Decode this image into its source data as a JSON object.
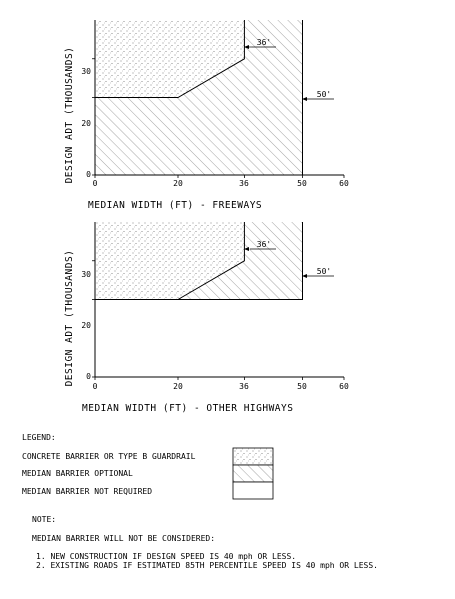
{
  "chart_data": [
    {
      "type": "area",
      "xlabel": "MEDIAN WIDTH (FT) - FREEWAYS",
      "ylabel": "DESIGN ADT (THOUSANDS)",
      "x_ticks": [
        "0",
        "20",
        "36",
        "50",
        "60"
      ],
      "y_ticks": [
        "0",
        "20",
        "30"
      ],
      "xlim": [
        0,
        60
      ],
      "ylim": [
        0,
        40
      ],
      "barrier_boundary": [
        [
          0,
          20
        ],
        [
          20,
          20
        ],
        [
          36,
          30
        ],
        [
          36,
          40
        ]
      ],
      "optional_boundary_x": 50,
      "annotations": [
        "36'",
        "50'"
      ]
    },
    {
      "type": "area",
      "xlabel": "MEDIAN WIDTH (FT) - OTHER HIGHWAYS",
      "ylabel": "DESIGN ADT (THOUSANDS)",
      "x_ticks": [
        "0",
        "20",
        "36",
        "50",
        "60"
      ],
      "y_ticks": [
        "0",
        "20",
        "30"
      ],
      "xlim": [
        0,
        60
      ],
      "ylim": [
        0,
        40
      ],
      "barrier_boundary": [
        [
          20,
          20
        ],
        [
          36,
          30
        ],
        [
          36,
          40
        ]
      ],
      "optional_region": [
        [
          0,
          20
        ],
        [
          50,
          20
        ],
        [
          50,
          40
        ],
        [
          0,
          40
        ]
      ],
      "annotations": [
        "36'",
        "50'"
      ]
    }
  ],
  "legend": {
    "title": "LEGEND:",
    "items": [
      {
        "label": "CONCRETE BARRIER OR TYPE B GUARDRAIL",
        "pattern": "dots"
      },
      {
        "label": "MEDIAN BARRIER OPTIONAL",
        "pattern": "hatch"
      },
      {
        "label": "MEDIAN BARRIER NOT REQUIRED",
        "pattern": "blank"
      }
    ]
  },
  "note": {
    "title": "NOTE:",
    "intro": "MEDIAN BARRIER WILL NOT BE CONSIDERED:",
    "items": [
      "1. NEW CONSTRUCTION IF DESIGN SPEED IS 40 mph OR LESS.",
      "2. EXISTING ROADS IF ESTIMATED 85TH PERCENTILE SPEED IS 40 mph OR LESS."
    ]
  }
}
